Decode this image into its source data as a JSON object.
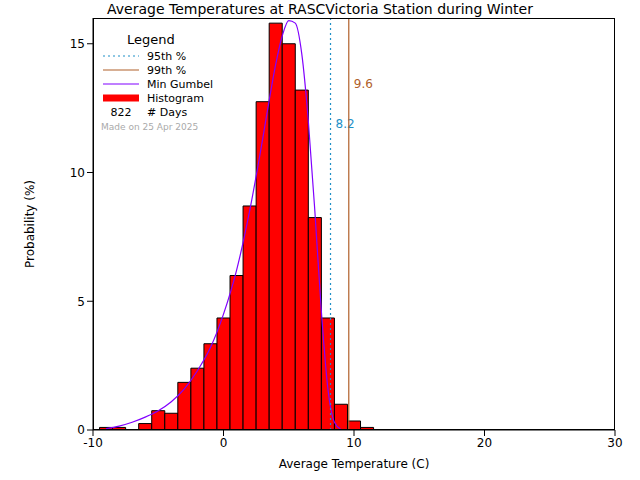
{
  "chart_data": {
    "type": "histogram",
    "title": "Average Temperatures at RASCVictoria Station during Winter",
    "x_label": "Average Temperature (C)",
    "y_label": "Probability (%)",
    "name": "Histogram",
    "color": "#ff0000",
    "bins": [
      -9.5,
      -8.5,
      -7.5,
      -6.5,
      -5.5,
      -4.5,
      -3.5,
      -2.5,
      -1.5,
      -0.5,
      0.5,
      1.5,
      2.5,
      3.5,
      4.5,
      5.5,
      6.5,
      7.5,
      8.5,
      9.5,
      10.5,
      11.5
    ],
    "values": [
      0.1,
      0.1,
      0,
      0.25,
      0.75,
      0.65,
      1.85,
      2.4,
      3.35,
      4.35,
      6.0,
      8.7,
      12.75,
      15.8,
      15.0,
      13.2,
      8.25,
      4.35,
      1.0,
      0.35,
      0.1
    ],
    "curve": {
      "name": "Min Gumbel",
      "color": "#8000ff",
      "x": [
        -9,
        -8,
        -7,
        -6,
        -5,
        -4,
        -3,
        -2,
        -1,
        0,
        1,
        2,
        3,
        3.5,
        4,
        4.5,
        5,
        5.5,
        6,
        6.5,
        7,
        7.5,
        8,
        8.5,
        9
      ],
      "values": [
        0.05,
        0.15,
        0.3,
        0.5,
        0.75,
        1.1,
        1.6,
        2.3,
        3.2,
        4.5,
        6.2,
        8.5,
        11.3,
        12.8,
        14.2,
        15.3,
        15.9,
        15.8,
        14.6,
        12.0,
        8.5,
        4.6,
        1.6,
        0.3,
        0.02
      ]
    },
    "percentiles": [
      {
        "name": "95th %",
        "value": 8.2,
        "color": "#1e90c8",
        "line_style": "dotted"
      },
      {
        "name": "99th %",
        "value": 9.6,
        "color": "#b0602a",
        "line_style": "solid"
      }
    ],
    "legend_title": "Legend",
    "legend": "upper left",
    "days": 822,
    "days_label": "# Days",
    "note": "Made on 25 Apr 2025",
    "xlim": [
      -10,
      30
    ],
    "ylim": [
      0,
      16
    ],
    "xticks": [
      -10,
      0,
      10,
      20,
      30
    ],
    "yticks": [
      0,
      5,
      10,
      15
    ],
    "grid": false
  }
}
